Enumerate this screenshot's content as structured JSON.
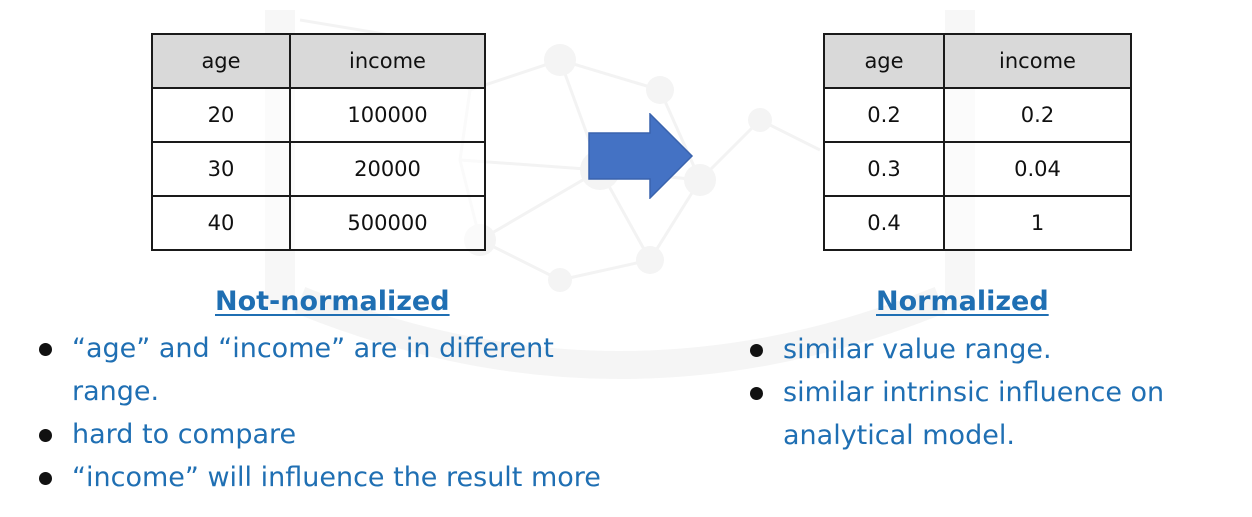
{
  "left_table": {
    "headers": [
      "age",
      "income"
    ],
    "rows": [
      [
        "20",
        "100000"
      ],
      [
        "30",
        "20000"
      ],
      [
        "40",
        "500000"
      ]
    ]
  },
  "right_table": {
    "headers": [
      "age",
      "income"
    ],
    "rows": [
      [
        "0.2",
        "0.2"
      ],
      [
        "0.3",
        "0.04"
      ],
      [
        "0.4",
        "1"
      ]
    ]
  },
  "arrow_icon": "right-arrow",
  "colors": {
    "accent_text": "#1f6fb3",
    "arrow_fill": "#4472c4",
    "header_fill": "#d9d9d9"
  },
  "left_section": {
    "heading": "Not-normalized",
    "bullets": [
      "“age” and “income” are in different range.",
      "hard to compare",
      "“income” will influence the result more"
    ]
  },
  "right_section": {
    "heading": "Normalized",
    "bullets": [
      "similar value range.",
      "similar intrinsic influence on analytical model."
    ]
  }
}
